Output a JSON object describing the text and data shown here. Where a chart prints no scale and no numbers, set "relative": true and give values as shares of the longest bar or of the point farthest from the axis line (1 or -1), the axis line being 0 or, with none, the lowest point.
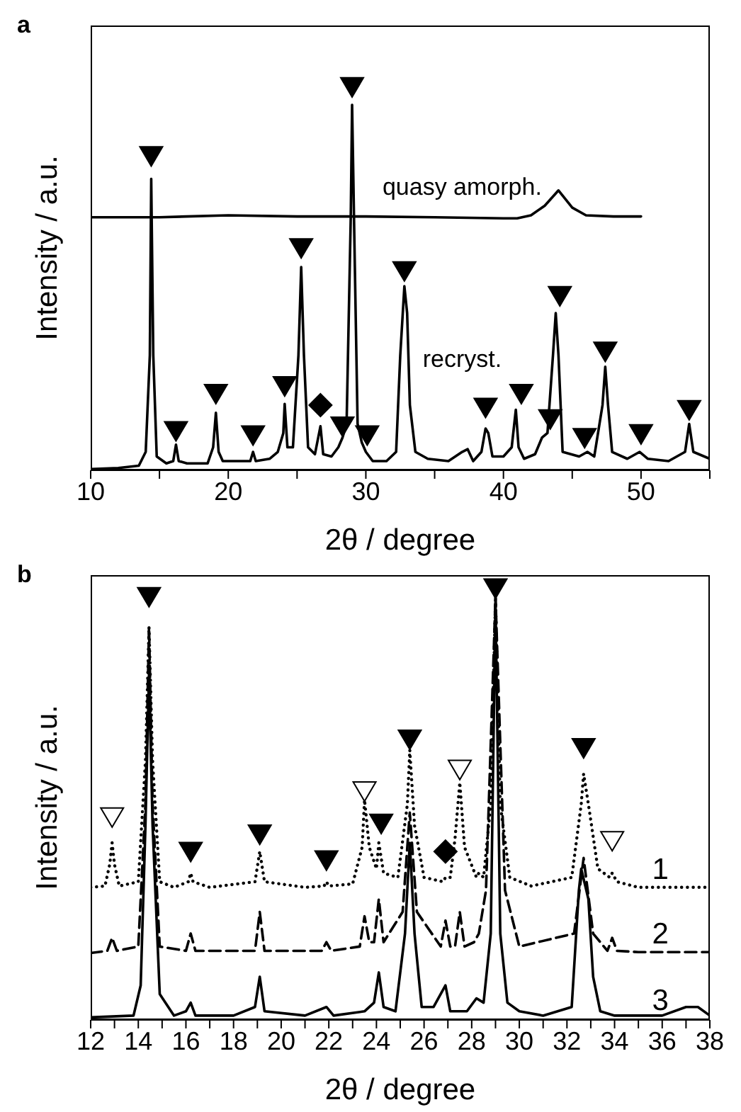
{
  "chart_data": [
    {
      "type": "line",
      "title": "a",
      "xlabel": "2θ / degree",
      "ylabel": "Intensity / a.u.",
      "relative": true,
      "xlim": [
        10,
        55
      ],
      "xticks": [
        10,
        {
          "value": 15,
          "label": null
        },
        20,
        {
          "value": 25,
          "label": null
        },
        30,
        {
          "value": 35,
          "label": null
        },
        40,
        {
          "value": 45,
          "label": null
        },
        50,
        {
          "value": 55,
          "label": null
        }
      ],
      "series": [
        {
          "type": "line",
          "name": "quasy amorph.",
          "color": "#000000",
          "line_style": "solid",
          "x": [
            10,
            15,
            20,
            25,
            30,
            35,
            40,
            41,
            42,
            43,
            44,
            45,
            46,
            48,
            50
          ],
          "values": [
            0.66,
            0.66,
            0.665,
            0.662,
            0.662,
            0.66,
            0.657,
            0.657,
            0.665,
            0.69,
            0.73,
            0.685,
            0.665,
            0.662,
            0.662
          ]
        },
        {
          "type": "line",
          "name": "recryst.",
          "color": "#000000",
          "line_style": "solid",
          "x": [
            10,
            12,
            13.5,
            14,
            14.3,
            14.4,
            14.55,
            14.8,
            15.5,
            16,
            16.2,
            16.4,
            17,
            18.5,
            18.9,
            19.1,
            19.3,
            19.6,
            21,
            21.6,
            21.8,
            22,
            23,
            23.6,
            24,
            24.1,
            24.3,
            24.7,
            25.1,
            25.3,
            25.5,
            25.8,
            26.3,
            26.7,
            26.9,
            27.5,
            28,
            28.3,
            28.6,
            28.9,
            29,
            29.2,
            29.4,
            29.7,
            30,
            30.5,
            31.5,
            32.2,
            32.5,
            32.8,
            33,
            33.2,
            33.6,
            34.5,
            36,
            37,
            37.4,
            37.8,
            38.4,
            38.7,
            38.9,
            39.2,
            40,
            40.6,
            40.9,
            41.1,
            41.5,
            42.3,
            42.8,
            43.2,
            43.6,
            43.8,
            44,
            44.3,
            45.5,
            46.1,
            46.6,
            47.2,
            47.4,
            47.6,
            47.9,
            49,
            49.9,
            50.5,
            52,
            53.2,
            53.5,
            53.8,
            55
          ],
          "values": [
            0.003,
            0.006,
            0.012,
            0.048,
            0.3,
            0.76,
            0.3,
            0.036,
            0.018,
            0.024,
            0.067,
            0.024,
            0.018,
            0.018,
            0.06,
            0.15,
            0.048,
            0.024,
            0.024,
            0.024,
            0.048,
            0.024,
            0.03,
            0.048,
            0.097,
            0.173,
            0.06,
            0.06,
            0.3,
            0.53,
            0.3,
            0.06,
            0.042,
            0.115,
            0.042,
            0.036,
            0.06,
            0.085,
            0.121,
            0.655,
            0.953,
            0.53,
            0.121,
            0.073,
            0.048,
            0.024,
            0.024,
            0.048,
            0.3,
            0.48,
            0.41,
            0.17,
            0.048,
            0.03,
            0.024,
            0.048,
            0.055,
            0.024,
            0.048,
            0.109,
            0.097,
            0.036,
            0.036,
            0.06,
            0.158,
            0.06,
            0.03,
            0.042,
            0.085,
            0.097,
            0.3,
            0.41,
            0.3,
            0.048,
            0.036,
            0.048,
            0.036,
            0.17,
            0.27,
            0.17,
            0.048,
            0.03,
            0.048,
            0.03,
            0.024,
            0.048,
            0.121,
            0.048,
            0.03
          ]
        },
        {
          "type": "scatter",
          "color": "#000000",
          "marker": "triangle",
          "x": [
            14.4,
            16.2,
            19.1,
            21.8,
            24.1,
            25.3,
            28.3,
            29,
            30.1,
            32.8,
            38.7,
            41.3,
            43.4,
            44.1,
            45.9,
            47.4,
            50,
            53.5
          ],
          "values": [
            0.82,
            0.103,
            0.2,
            0.092,
            0.22,
            0.58,
            0.115,
            1,
            0.092,
            0.52,
            0.164,
            0.2,
            0.134,
            0.455,
            0.085,
            0.31,
            0.095,
            0.158
          ]
        },
        {
          "type": "scatter",
          "color": "#000000",
          "marker": "diamond",
          "x": [
            26.7
          ],
          "values": [
            0.17
          ]
        }
      ]
    },
    {
      "type": "line",
      "title": "b",
      "xlabel": "2θ / degree",
      "ylabel": "Intensity / a.u.",
      "relative": true,
      "xlim": [
        12,
        38
      ],
      "xticks": [
        12,
        {
          "value": 13,
          "label": null
        },
        14,
        {
          "value": 15,
          "label": null
        },
        16,
        {
          "value": 17,
          "label": null
        },
        18,
        {
          "value": 19,
          "label": null
        },
        20,
        {
          "value": 21,
          "label": null
        },
        22,
        {
          "value": 23,
          "label": null
        },
        24,
        {
          "value": 25,
          "label": null
        },
        26,
        {
          "value": 27,
          "label": null
        },
        28,
        {
          "value": 29,
          "label": null
        },
        30,
        {
          "value": 31,
          "label": null
        },
        32,
        {
          "value": 33,
          "label": null
        },
        34,
        {
          "value": 35,
          "label": null
        },
        36,
        {
          "value": 37,
          "label": null
        },
        38
      ],
      "series": [
        {
          "type": "line",
          "name": "1",
          "color": "#000000",
          "line_style": "dotted",
          "x": [
            12,
            12.6,
            12.8,
            12.9,
            13.0,
            13.2,
            14,
            14.3,
            14.45,
            14.6,
            14.9,
            15.5,
            16.1,
            16.2,
            16.3,
            17,
            18.9,
            19.1,
            19.3,
            21,
            21.8,
            21.9,
            22.0,
            23,
            23.4,
            23.5,
            23.7,
            24,
            24.1,
            24.3,
            24.9,
            25.3,
            25.4,
            25.6,
            26,
            26.8,
            26.9,
            27.1,
            27.3,
            27.5,
            27.7,
            28.2,
            28.3,
            28.5,
            28.8,
            29,
            29.2,
            29.6,
            30.5,
            32.2,
            32.6,
            32.7,
            32.9,
            33.3,
            33.8,
            33.9,
            34.1,
            35,
            38
          ],
          "values": [
            0.307,
            0.31,
            0.36,
            0.41,
            0.36,
            0.31,
            0.32,
            0.6,
            0.91,
            0.6,
            0.32,
            0.307,
            0.32,
            0.34,
            0.32,
            0.307,
            0.32,
            0.39,
            0.32,
            0.307,
            0.31,
            0.32,
            0.31,
            0.315,
            0.4,
            0.51,
            0.4,
            0.35,
            0.41,
            0.34,
            0.33,
            0.5,
            0.625,
            0.45,
            0.33,
            0.32,
            0.33,
            0.33,
            0.42,
            0.55,
            0.4,
            0.33,
            0.34,
            0.33,
            0.5,
            0.98,
            0.5,
            0.33,
            0.31,
            0.33,
            0.5,
            0.57,
            0.5,
            0.35,
            0.33,
            0.34,
            0.32,
            0.307,
            0.307
          ]
        },
        {
          "type": "line",
          "name": "2",
          "color": "#000000",
          "line_style": "dashed",
          "x": [
            12,
            12.7,
            12.9,
            13.1,
            14,
            14.3,
            14.45,
            14.6,
            14.9,
            16,
            16.2,
            16.4,
            18.9,
            19.1,
            19.3,
            21.7,
            21.9,
            22.1,
            23.3,
            23.5,
            23.7,
            23.9,
            24.1,
            24.3,
            25.1,
            25.4,
            25.7,
            26.7,
            26.9,
            27.1,
            27.3,
            27.5,
            27.7,
            28.1,
            28.3,
            28.6,
            29,
            29.4,
            30,
            32.3,
            32.7,
            33.1,
            33.7,
            33.9,
            34.1,
            35,
            38
          ],
          "values": [
            0.155,
            0.16,
            0.19,
            0.16,
            0.17,
            0.5,
            0.91,
            0.5,
            0.17,
            0.16,
            0.2,
            0.16,
            0.16,
            0.25,
            0.16,
            0.16,
            0.18,
            0.16,
            0.17,
            0.24,
            0.18,
            0.18,
            0.28,
            0.18,
            0.25,
            0.48,
            0.25,
            0.17,
            0.23,
            0.17,
            0.17,
            0.25,
            0.17,
            0.18,
            0.2,
            0.3,
            0.98,
            0.3,
            0.17,
            0.2,
            0.375,
            0.2,
            0.16,
            0.19,
            0.16,
            0.157,
            0.157
          ]
        },
        {
          "type": "line",
          "name": "3",
          "color": "#000000",
          "line_style": "solid",
          "x": [
            12,
            13.8,
            14.1,
            14.3,
            14.45,
            14.6,
            14.9,
            15.5,
            16,
            16.2,
            16.4,
            18,
            18.9,
            19.1,
            19.3,
            21,
            21.9,
            22.2,
            23.5,
            23.9,
            24.1,
            24.3,
            24.8,
            25.2,
            25.4,
            25.6,
            25.9,
            26.4,
            26.9,
            27.1,
            27.8,
            28.2,
            28.5,
            28.8,
            29,
            29.2,
            29.5,
            30,
            31,
            32.2,
            32.5,
            32.6,
            32.9,
            33.1,
            33.4,
            34,
            36,
            37,
            37.5,
            38
          ],
          "values": [
            0.006,
            0.01,
            0.08,
            0.45,
            0.8,
            0.45,
            0.06,
            0.01,
            0.02,
            0.04,
            0.01,
            0.01,
            0.03,
            0.1,
            0.02,
            0.01,
            0.03,
            0.01,
            0.02,
            0.04,
            0.11,
            0.03,
            0.02,
            0.2,
            0.41,
            0.2,
            0.03,
            0.03,
            0.08,
            0.02,
            0.02,
            0.05,
            0.04,
            0.2,
            0.97,
            0.2,
            0.04,
            0.02,
            0.01,
            0.03,
            0.3,
            0.35,
            0.28,
            0.1,
            0.02,
            0.01,
            0.01,
            0.03,
            0.03,
            0.01
          ]
        },
        {
          "type": "scatter",
          "color": "#000000",
          "marker": "triangle",
          "x": [
            14.45,
            16.2,
            19.1,
            21.9,
            24.2,
            25.4,
            29,
            32.7
          ],
          "values": [
            0.98,
            0.39,
            0.43,
            0.37,
            0.455,
            0.65,
            1,
            0.63
          ]
        },
        {
          "type": "scatter",
          "color": "#ffffff",
          "marker": "triangle",
          "x": [
            12.9,
            23.5,
            27.5,
            33.9
          ],
          "values": [
            0.47,
            0.53,
            0.58,
            0.415
          ]
        },
        {
          "type": "scatter",
          "color": "#000000",
          "marker": "diamond",
          "x": [
            26.9
          ],
          "values": [
            0.39
          ]
        }
      ]
    }
  ]
}
